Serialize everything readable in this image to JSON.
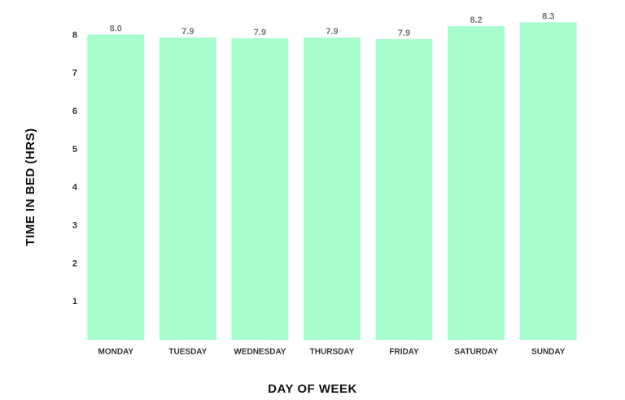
{
  "chart_data": {
    "type": "bar",
    "x_label": "DAY OF WEEK",
    "y_label": "TIME IN BED (HRS)",
    "categories": [
      "MONDAY",
      "TUESDAY",
      "WEDNESDAY",
      "THURSDAY",
      "FRIDAY",
      "SATURDAY",
      "SUNDAY"
    ],
    "values": [
      8.02,
      7.94,
      7.92,
      7.94,
      7.9,
      8.24,
      8.34
    ],
    "value_labels": [
      "8.0",
      "7.9",
      "7.9",
      "7.9",
      "7.9",
      "8.2",
      "8.3"
    ],
    "color": "#a7fdcb",
    "ylim": [
      0,
      8.5
    ],
    "yticks": [
      1,
      2,
      3,
      4,
      5,
      6,
      7,
      8
    ],
    "grid": false
  }
}
